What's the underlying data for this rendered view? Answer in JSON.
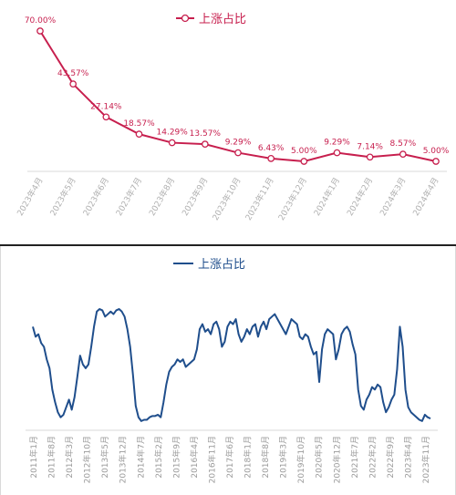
{
  "chart_data": [
    {
      "type": "line",
      "legend": "上涨占比",
      "legend_position": "top",
      "color": "#c71f4e",
      "grid": false,
      "categories": [
        "2023年4月",
        "2023年5月",
        "2023年6月",
        "2023年7月",
        "2023年8月",
        "2023年9月",
        "2023年10月",
        "2023年11月",
        "2023年12月",
        "2024年1月",
        "2024年2月",
        "2024年3月",
        "2024年4月"
      ],
      "values": [
        70.0,
        43.57,
        27.14,
        18.57,
        14.29,
        13.57,
        9.29,
        6.43,
        5.0,
        9.29,
        7.14,
        8.57,
        5.0
      ],
      "data_labels": [
        "70.00%",
        "43.57%",
        "27.14%",
        "18.57%",
        "14.29%",
        "13.57%",
        "9.29%",
        "6.43%",
        "5.00%",
        "9.29%",
        "7.14%",
        "8.57%",
        "5.00%"
      ],
      "ylim": [
        0,
        80
      ]
    },
    {
      "type": "line",
      "legend": "上涨占比",
      "legend_position": "top",
      "color": "#1f4e8c",
      "grid": false,
      "x_tick_labels": [
        "2011年1月",
        "2011年8月",
        "2012年3月",
        "2012年10月",
        "2013年5月",
        "2013年12月",
        "2014年7月",
        "2015年2月",
        "2015年9月",
        "2016年4月",
        "2016年11月",
        "2017年6月",
        "2018年1月",
        "2018年8月",
        "2019年3月",
        "2019年10月",
        "2020年5月",
        "2020年12月",
        "2021年7月",
        "2022年2月",
        "2022年9月",
        "2023年4月",
        "2023年11月"
      ],
      "ylim": [
        0,
        100
      ],
      "values": [
        78,
        70,
        72,
        65,
        62,
        52,
        45,
        28,
        18,
        10,
        6,
        8,
        14,
        20,
        12,
        22,
        38,
        55,
        48,
        45,
        48,
        62,
        78,
        90,
        92,
        91,
        86,
        88,
        90,
        88,
        91,
        92,
        90,
        86,
        76,
        62,
        40,
        15,
        6,
        3,
        4,
        4,
        6,
        7,
        7,
        8,
        6,
        18,
        32,
        42,
        46,
        48,
        52,
        50,
        52,
        46,
        48,
        50,
        52,
        60,
        76,
        80,
        74,
        76,
        72,
        80,
        82,
        76,
        62,
        66,
        78,
        82,
        80,
        84,
        72,
        66,
        70,
        76,
        72,
        78,
        80,
        70,
        78,
        82,
        76,
        84,
        86,
        88,
        84,
        80,
        76,
        72,
        78,
        84,
        82,
        80,
        70,
        68,
        72,
        70,
        62,
        56,
        58,
        34,
        60,
        72,
        76,
        74,
        72,
        52,
        60,
        72,
        76,
        78,
        74,
        64,
        56,
        28,
        15,
        12,
        20,
        24,
        30,
        28,
        32,
        30,
        18,
        10,
        14,
        20,
        24,
        44,
        78,
        62,
        28,
        14,
        10,
        8,
        6,
        4,
        3,
        8,
        6,
        5
      ]
    }
  ]
}
